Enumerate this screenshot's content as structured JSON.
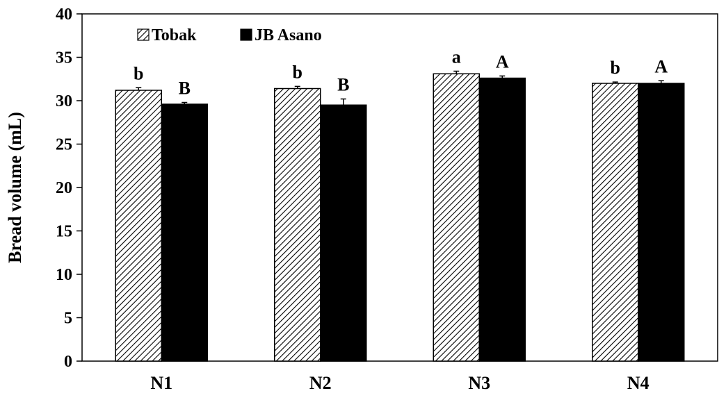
{
  "chart_data": {
    "type": "bar",
    "title": "",
    "xlabel": "",
    "ylabel": "Bread volume (mL)",
    "ylim": [
      0,
      40
    ],
    "yticks": [
      "0",
      "5",
      "10",
      "15",
      "20",
      "25",
      "30",
      "35",
      "40"
    ],
    "categories": [
      "N1",
      "N2",
      "N3",
      "N4"
    ],
    "legend_position": "top-left",
    "series": [
      {
        "name": "Tobak",
        "pattern": "diagonal-hatch",
        "color": "#000000",
        "values": [
          31.2,
          31.4,
          33.1,
          32.0
        ],
        "errors": [
          0.3,
          0.25,
          0.3,
          0.15
        ],
        "letters": [
          "b",
          "b",
          "a",
          "b"
        ]
      },
      {
        "name": "JB Asano",
        "pattern": "solid",
        "color": "#000000",
        "values": [
          29.6,
          29.5,
          32.6,
          32.0
        ],
        "errors": [
          0.2,
          0.7,
          0.25,
          0.3
        ],
        "letters": [
          "B",
          "B",
          "A",
          "A"
        ]
      }
    ]
  }
}
